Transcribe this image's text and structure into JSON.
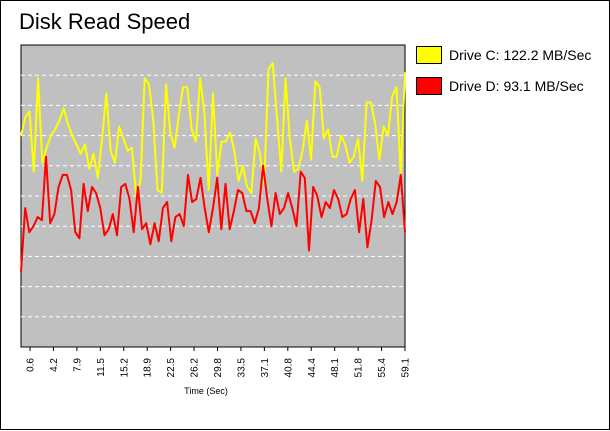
{
  "chart_data": {
    "type": "line",
    "title": "Disk Read Speed",
    "xlabel": "Time (Sec)",
    "ylabel": "",
    "x_tick_labels": [
      "0.6",
      "4.2",
      "7.9",
      "11.5",
      "15.2",
      "18.9",
      "22.5",
      "26.2",
      "29.8",
      "33.5",
      "37.1",
      "40.8",
      "44.4",
      "48.1",
      "51.8",
      "55.4",
      "59.1"
    ],
    "xlim": [
      0,
      60
    ],
    "ylim": [
      0,
      10
    ],
    "grid": true,
    "legend_position": "top-right",
    "plot_background": "#c0c0c0",
    "series": [
      {
        "name": "Drive C:",
        "legend_value": "122.2 MB/Sec",
        "color": "#ffff00",
        "values": [
          7.0,
          7.6,
          7.8,
          5.8,
          8.9,
          6.1,
          6.6,
          7.0,
          7.2,
          7.5,
          7.9,
          7.4,
          7.0,
          6.7,
          6.4,
          6.7,
          5.9,
          6.4,
          5.6,
          6.9,
          8.4,
          6.5,
          6.1,
          7.3,
          6.9,
          6.5,
          6.6,
          5.0,
          5.5,
          8.9,
          8.7,
          7.5,
          5.2,
          5.1,
          8.7,
          7.1,
          6.6,
          7.7,
          8.6,
          8.6,
          7.2,
          6.8,
          8.9,
          7.7,
          5.2,
          8.4,
          5.7,
          6.8,
          6.8,
          7.1,
          6.5,
          5.5,
          6.0,
          5.3,
          5.1,
          6.9,
          6.4,
          5.4,
          9.2,
          9.4,
          7.6,
          5.8,
          8.9,
          6.9,
          5.8,
          5.9,
          6.5,
          7.5,
          6.2,
          8.8,
          8.6,
          6.9,
          7.2,
          6.3,
          6.3,
          7.0,
          6.7,
          6.1,
          6.3,
          6.9,
          5.5,
          8.1,
          8.1,
          7.4,
          6.2,
          7.3,
          7.0,
          8.3,
          8.6,
          5.7,
          9.1
        ]
      },
      {
        "name": "Drive D:",
        "legend_value": "93.1 MB/Sec",
        "color": "#ff0000",
        "values": [
          2.5,
          4.6,
          3.8,
          4.0,
          4.3,
          4.2,
          6.3,
          4.1,
          4.4,
          5.3,
          5.7,
          5.7,
          5.2,
          3.8,
          3.6,
          5.4,
          4.5,
          5.3,
          5.1,
          4.6,
          3.7,
          3.9,
          4.4,
          3.7,
          5.3,
          5.4,
          4.9,
          3.8,
          5.3,
          3.9,
          4.1,
          3.4,
          4.1,
          3.5,
          4.6,
          4.8,
          3.5,
          4.3,
          4.4,
          4.0,
          5.7,
          4.8,
          4.9,
          5.6,
          4.6,
          3.8,
          4.6,
          5.6,
          3.9,
          5.4,
          3.9,
          4.5,
          5.2,
          5.1,
          4.5,
          4.5,
          4.1,
          4.6,
          6.0,
          4.9,
          4.0,
          5.1,
          4.4,
          4.6,
          5.1,
          4.6,
          4.0,
          5.8,
          5.6,
          3.2,
          5.3,
          5.0,
          4.3,
          4.8,
          4.6,
          5.2,
          4.9,
          4.3,
          4.4,
          4.9,
          5.2,
          3.8,
          4.9,
          3.3,
          4.2,
          5.5,
          5.3,
          4.3,
          4.8,
          4.4,
          4.8,
          5.7,
          3.8
        ]
      }
    ]
  }
}
